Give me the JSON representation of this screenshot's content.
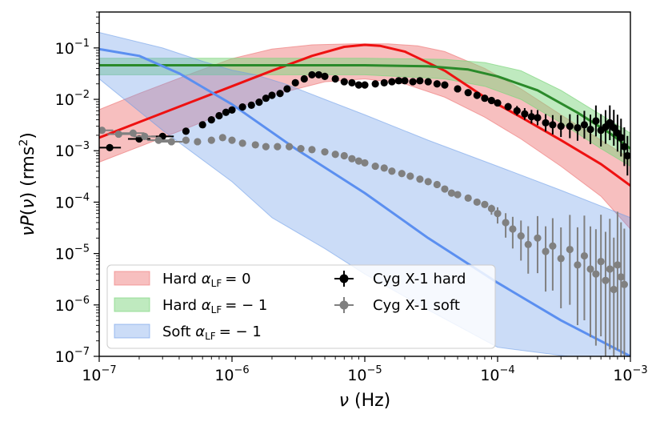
{
  "chart_data": {
    "type": "line",
    "scale": {
      "x": "log",
      "y": "log"
    },
    "xlim": [
      1e-07,
      0.001
    ],
    "ylim": [
      1e-07,
      0.5
    ],
    "xlabel": "ν (Hz)",
    "ylabel": "νP(ν) (rms²)",
    "x_ticks": [
      {
        "mantissa": "10",
        "exp": "−7",
        "value": 1e-07
      },
      {
        "mantissa": "10",
        "exp": "−6",
        "value": 1e-06
      },
      {
        "mantissa": "10",
        "exp": "−5",
        "value": 1e-05
      },
      {
        "mantissa": "10",
        "exp": "−4",
        "value": 0.0001
      },
      {
        "mantissa": "10",
        "exp": "−3",
        "value": 0.001
      }
    ],
    "y_ticks": [
      {
        "mantissa": "10",
        "exp": "−7",
        "value": 1e-07
      },
      {
        "mantissa": "10",
        "exp": "−6",
        "value": 1e-06
      },
      {
        "mantissa": "10",
        "exp": "−5",
        "value": 1e-05
      },
      {
        "mantissa": "10",
        "exp": "−4",
        "value": 0.0001
      },
      {
        "mantissa": "10",
        "exp": "−3",
        "value": 0.001
      },
      {
        "mantissa": "10",
        "exp": "−2",
        "value": 0.01
      },
      {
        "mantissa": "10",
        "exp": "−1",
        "value": 0.1
      }
    ],
    "legend_position": "lower-left",
    "bands": [
      {
        "name": "Hard α_LF = 0",
        "label_prefix": "Hard ",
        "label_math": "= 0",
        "color": "#f08080",
        "alpha": 0.5,
        "upper": [
          [
            1e-07,
            0.0063
          ],
          [
            2e-07,
            0.013
          ],
          [
            5e-07,
            0.032
          ],
          [
            1e-06,
            0.062
          ],
          [
            2e-06,
            0.095
          ],
          [
            4e-06,
            0.115
          ],
          [
            8e-06,
            0.12
          ],
          [
            1.5e-05,
            0.12
          ],
          [
            2.5e-05,
            0.11
          ],
          [
            4e-05,
            0.085
          ],
          [
            8e-05,
            0.04
          ],
          [
            0.00015,
            0.016
          ],
          [
            0.0003,
            0.005
          ],
          [
            0.0006,
            0.0016
          ],
          [
            0.001,
            0.0007
          ]
        ],
        "lower": [
          [
            1e-07,
            0.0006
          ],
          [
            2e-07,
            0.0012
          ],
          [
            5e-07,
            0.003
          ],
          [
            1e-06,
            0.0062
          ],
          [
            2e-06,
            0.012
          ],
          [
            5e-06,
            0.022
          ],
          [
            1e-05,
            0.025
          ],
          [
            2e-05,
            0.02
          ],
          [
            4e-05,
            0.011
          ],
          [
            8e-05,
            0.0045
          ],
          [
            0.00015,
            0.0017
          ],
          [
            0.0003,
            0.0005
          ],
          [
            0.0006,
            0.00013
          ],
          [
            0.001,
            3e-05
          ]
        ]
      },
      {
        "name": "Hard α_LF = −1",
        "label_prefix": "Hard ",
        "label_math": "= − 1",
        "color": "#7fd57f",
        "alpha": 0.5,
        "upper": [
          [
            1e-07,
            0.063
          ],
          [
            1e-06,
            0.063
          ],
          [
            1e-05,
            0.063
          ],
          [
            4e-05,
            0.06
          ],
          [
            8e-05,
            0.052
          ],
          [
            0.00015,
            0.036
          ],
          [
            0.0003,
            0.015
          ],
          [
            0.0006,
            0.005
          ],
          [
            0.001,
            0.0022
          ]
        ],
        "lower": [
          [
            1e-07,
            0.03
          ],
          [
            1e-06,
            0.03
          ],
          [
            1e-05,
            0.03
          ],
          [
            4e-05,
            0.025
          ],
          [
            8e-05,
            0.018
          ],
          [
            0.00015,
            0.01
          ],
          [
            0.0003,
            0.0035
          ],
          [
            0.0006,
            0.0011
          ],
          [
            0.001,
            0.0005
          ]
        ]
      },
      {
        "name": "Soft α_LF = −1",
        "label_prefix": "Soft ",
        "label_math": "= − 1",
        "color": "#6a9be8",
        "alpha": 0.35,
        "upper": [
          [
            1e-07,
            0.2
          ],
          [
            3e-07,
            0.1
          ],
          [
            6e-07,
            0.055
          ],
          [
            1e-06,
            0.037
          ],
          [
            1.5e-06,
            0.03
          ],
          [
            2.5e-06,
            0.02
          ],
          [
            5e-06,
            0.01
          ],
          [
            1e-05,
            0.005
          ],
          [
            3e-05,
            0.0016
          ],
          [
            0.0001,
            0.0005
          ],
          [
            0.0003,
            0.00017
          ],
          [
            0.001,
            5e-05
          ]
        ],
        "lower": [
          [
            1e-07,
            0.025
          ],
          [
            3e-07,
            0.0025
          ],
          [
            1e-06,
            0.00025
          ],
          [
            2e-06,
            5e-05
          ],
          [
            5e-06,
            1.25e-05
          ],
          [
            1e-05,
            4e-06
          ],
          [
            3e-05,
            8e-07
          ],
          [
            0.0001,
            1.5e-07
          ],
          [
            0.001,
            7e-08
          ]
        ]
      }
    ],
    "series": [
      {
        "name": "Hard α_LF = 0 (mean)",
        "color": "#ee1111",
        "points": [
          [
            1e-07,
            0.0018
          ],
          [
            2e-07,
            0.0036
          ],
          [
            5e-07,
            0.009
          ],
          [
            1e-06,
            0.018
          ],
          [
            2e-06,
            0.036
          ],
          [
            4e-06,
            0.07
          ],
          [
            7e-06,
            0.105
          ],
          [
            1e-05,
            0.115
          ],
          [
            1.3e-05,
            0.11
          ],
          [
            2e-05,
            0.085
          ],
          [
            4e-05,
            0.036
          ],
          [
            8e-05,
            0.011
          ],
          [
            0.00015,
            0.0045
          ],
          [
            0.0003,
            0.0016
          ],
          [
            0.0006,
            0.00055
          ],
          [
            0.001,
            0.00021
          ]
        ]
      },
      {
        "name": "Hard α_LF = −1 (mean)",
        "color": "#2a8a2a",
        "points": [
          [
            1e-07,
            0.046
          ],
          [
            1e-06,
            0.046
          ],
          [
            1e-05,
            0.046
          ],
          [
            3e-05,
            0.044
          ],
          [
            6e-05,
            0.038
          ],
          [
            0.0001,
            0.028
          ],
          [
            0.0002,
            0.015
          ],
          [
            0.0004,
            0.0055
          ],
          [
            0.0007,
            0.0022
          ],
          [
            0.001,
            0.0011
          ]
        ]
      },
      {
        "name": "Soft α_LF = −1 (mean)",
        "color": "#5b8ff0",
        "points": [
          [
            1e-07,
            0.095
          ],
          [
            2e-07,
            0.07
          ],
          [
            4e-07,
            0.032
          ],
          [
            1e-06,
            0.008
          ],
          [
            3e-06,
            0.0011
          ],
          [
            1e-05,
            0.00015
          ],
          [
            3e-05,
            2e-05
          ],
          [
            0.0001,
            2.7e-06
          ],
          [
            0.0003,
            5e-07
          ],
          [
            0.001,
            1e-07
          ]
        ]
      }
    ],
    "scatter_series": [
      {
        "name": "Cyg X-1 hard",
        "color": "#000000",
        "marker": "circle",
        "points": [
          [
            1.2e-07,
            0.00115
          ],
          [
            2e-07,
            0.0017
          ],
          [
            3e-07,
            0.0019
          ],
          [
            4.5e-07,
            0.0024
          ],
          [
            6e-07,
            0.0032
          ],
          [
            7e-07,
            0.004
          ],
          [
            8e-07,
            0.0048
          ],
          [
            9e-07,
            0.0056
          ],
          [
            1e-06,
            0.0062
          ],
          [
            1.2e-06,
            0.0071
          ],
          [
            1.4e-06,
            0.0077
          ],
          [
            1.6e-06,
            0.0088
          ],
          [
            1.8e-06,
            0.0105
          ],
          [
            2e-06,
            0.012
          ],
          [
            2.3e-06,
            0.013
          ],
          [
            2.6e-06,
            0.016
          ],
          [
            3e-06,
            0.021
          ],
          [
            3.5e-06,
            0.025
          ],
          [
            4e-06,
            0.03
          ],
          [
            4.5e-06,
            0.03
          ],
          [
            5e-06,
            0.028
          ],
          [
            6e-06,
            0.025
          ],
          [
            7e-06,
            0.022
          ],
          [
            8e-06,
            0.021
          ],
          [
            9e-06,
            0.019
          ],
          [
            1e-05,
            0.019
          ],
          [
            1.2e-05,
            0.02
          ],
          [
            1.4e-05,
            0.021
          ],
          [
            1.6e-05,
            0.022
          ],
          [
            1.8e-05,
            0.023
          ],
          [
            2e-05,
            0.023
          ],
          [
            2.3e-05,
            0.022
          ],
          [
            2.6e-05,
            0.023
          ],
          [
            3e-05,
            0.022
          ],
          [
            3.5e-05,
            0.02
          ],
          [
            4e-05,
            0.019
          ],
          [
            5e-05,
            0.016
          ],
          [
            6e-05,
            0.0135
          ],
          [
            7e-05,
            0.012
          ],
          [
            8e-05,
            0.0105
          ],
          [
            9e-05,
            0.0095
          ],
          [
            0.0001,
            0.0085
          ],
          [
            0.00012,
            0.0072
          ],
          [
            0.00014,
            0.006
          ],
          [
            0.00016,
            0.0052
          ],
          [
            0.00018,
            0.0046
          ],
          [
            0.0002,
            0.0044
          ],
          [
            0.00023,
            0.0035
          ],
          [
            0.00026,
            0.0032
          ],
          [
            0.0003,
            0.003
          ],
          [
            0.00035,
            0.003
          ],
          [
            0.0004,
            0.0028
          ],
          [
            0.00045,
            0.0032
          ],
          [
            0.0005,
            0.0026
          ],
          [
            0.00055,
            0.0038
          ],
          [
            0.0006,
            0.0025
          ],
          [
            0.00065,
            0.0029
          ],
          [
            0.0007,
            0.0035
          ],
          [
            0.00075,
            0.0028
          ],
          [
            0.0008,
            0.0022
          ],
          [
            0.00085,
            0.0018
          ],
          [
            0.0009,
            0.0012
          ],
          [
            0.00095,
            0.0008
          ]
        ]
      },
      {
        "name": "Cyg X-1 soft",
        "color": "#808080",
        "marker": "circle",
        "points": [
          [
            1.05e-07,
            0.0025
          ],
          [
            1.4e-07,
            0.0021
          ],
          [
            1.8e-07,
            0.0022
          ],
          [
            2.2e-07,
            0.0019
          ],
          [
            2.8e-07,
            0.0016
          ],
          [
            3.5e-07,
            0.0015
          ],
          [
            4.5e-07,
            0.0016
          ],
          [
            5.5e-07,
            0.0015
          ],
          [
            7e-07,
            0.0016
          ],
          [
            8.5e-07,
            0.0018
          ],
          [
            1e-06,
            0.0016
          ],
          [
            1.2e-06,
            0.0014
          ],
          [
            1.5e-06,
            0.0013
          ],
          [
            1.8e-06,
            0.0012
          ],
          [
            2.2e-06,
            0.0012
          ],
          [
            2.7e-06,
            0.0012
          ],
          [
            3.3e-06,
            0.0011
          ],
          [
            4e-06,
            0.00105
          ],
          [
            5e-06,
            0.00095
          ],
          [
            6e-06,
            0.00085
          ],
          [
            7e-06,
            0.0008
          ],
          [
            8e-06,
            0.0007
          ],
          [
            9e-06,
            0.00063
          ],
          [
            1e-05,
            0.00058
          ],
          [
            1.2e-05,
            0.0005
          ],
          [
            1.4e-05,
            0.00046
          ],
          [
            1.6e-05,
            0.0004
          ],
          [
            1.9e-05,
            0.00036
          ],
          [
            2.2e-05,
            0.00032
          ],
          [
            2.6e-05,
            0.00028
          ],
          [
            3e-05,
            0.00025
          ],
          [
            3.5e-05,
            0.00022
          ],
          [
            4e-05,
            0.00018
          ],
          [
            4.5e-05,
            0.00015
          ],
          [
            5e-05,
            0.00014
          ],
          [
            6e-05,
            0.00012
          ],
          [
            7e-05,
            0.0001
          ],
          [
            8e-05,
            9e-05
          ],
          [
            9e-05,
            7.5e-05
          ],
          [
            0.0001,
            6e-05
          ],
          [
            0.000115,
            4e-05
          ],
          [
            0.00013,
            3e-05
          ],
          [
            0.00015,
            2.2e-05
          ],
          [
            0.00017,
            1.5e-05
          ],
          [
            0.0002,
            2e-05
          ],
          [
            0.00023,
            1.1e-05
          ],
          [
            0.00026,
            1.4e-05
          ],
          [
            0.0003,
            8e-06
          ],
          [
            0.00035,
            1.2e-05
          ],
          [
            0.0004,
            6e-06
          ],
          [
            0.00045,
            9e-06
          ],
          [
            0.0005,
            5e-06
          ],
          [
            0.00055,
            4e-06
          ],
          [
            0.0006,
            7e-06
          ],
          [
            0.00065,
            3e-06
          ],
          [
            0.0007,
            5e-06
          ],
          [
            0.00075,
            2e-06
          ],
          [
            0.0008,
            6e-06
          ],
          [
            0.00085,
            3.5e-06
          ],
          [
            0.0009,
            2.5e-06
          ]
        ]
      }
    ],
    "legend": {
      "col1": [
        "Hard α_LF = 0",
        "Hard α_LF = −1",
        "Soft α_LF = −1"
      ],
      "col2": [
        "Cyg X-1 hard",
        "Cyg X-1 soft"
      ]
    },
    "legend_labels": {
      "alpha_symbol": "α",
      "alpha_sub": "LF",
      "hard_obs": "Cyg X-1 hard",
      "soft_obs": "Cyg X-1 soft"
    }
  }
}
